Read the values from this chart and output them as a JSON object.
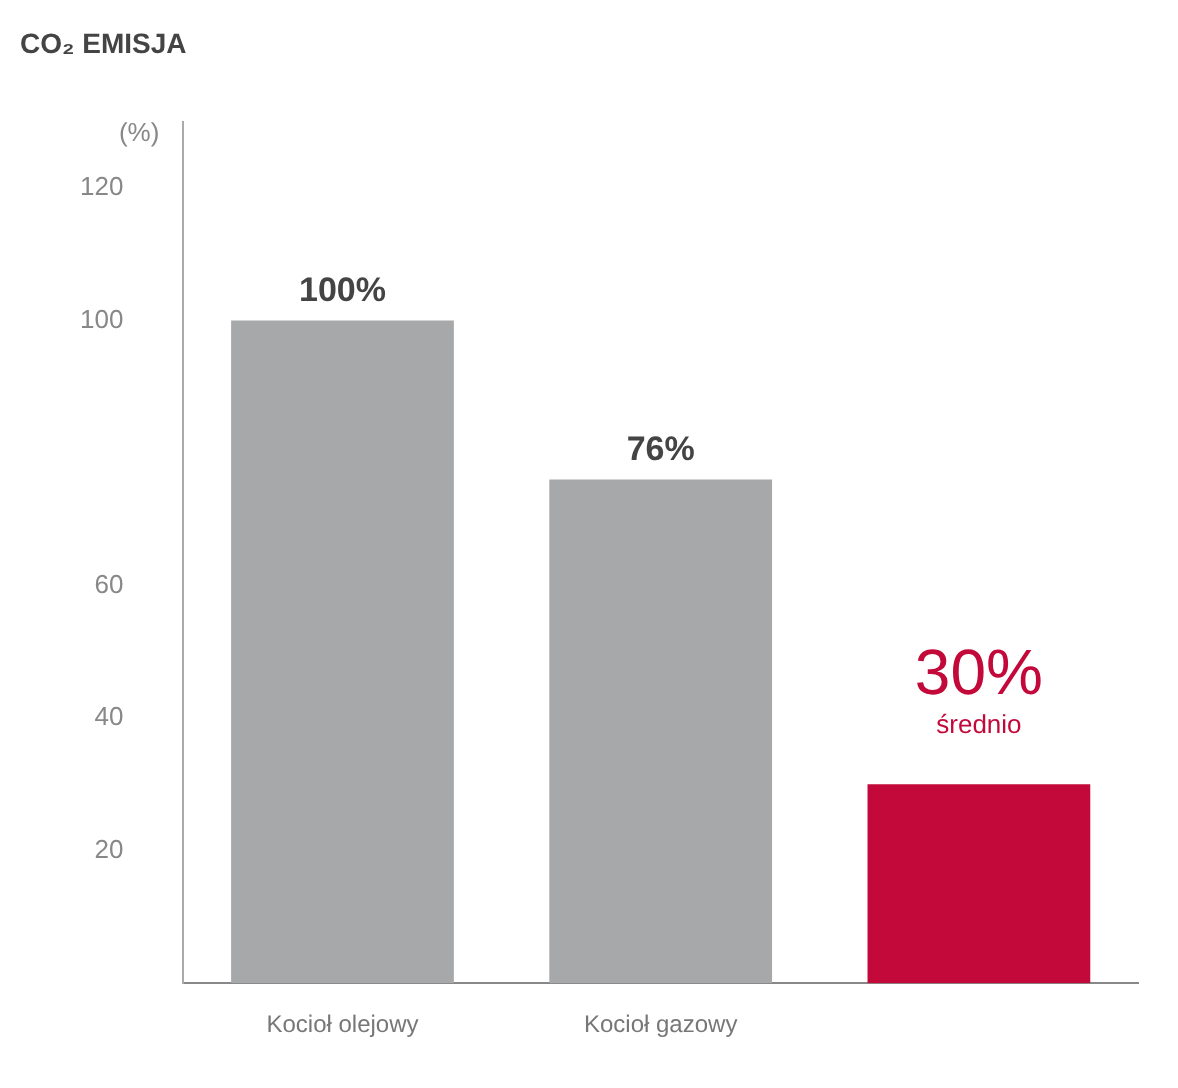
{
  "chart_data": {
    "type": "bar",
    "title": "CO₂ EMISJA",
    "ylabel": "(%)",
    "categories": [
      "Kocioł olejowy",
      "Kocioł gazowy",
      null
    ],
    "values": [
      100,
      76,
      30
    ],
    "colors": [
      "#a7a8aa",
      "#a7a8aa",
      "#c2093a"
    ],
    "value_labels": [
      "100%",
      "76%",
      "30%"
    ],
    "annotations": [
      "średnio"
    ],
    "ylim": [
      0,
      130
    ],
    "yticks": [
      20,
      40,
      60,
      100,
      120
    ],
    "grid": false,
    "legend": false
  }
}
